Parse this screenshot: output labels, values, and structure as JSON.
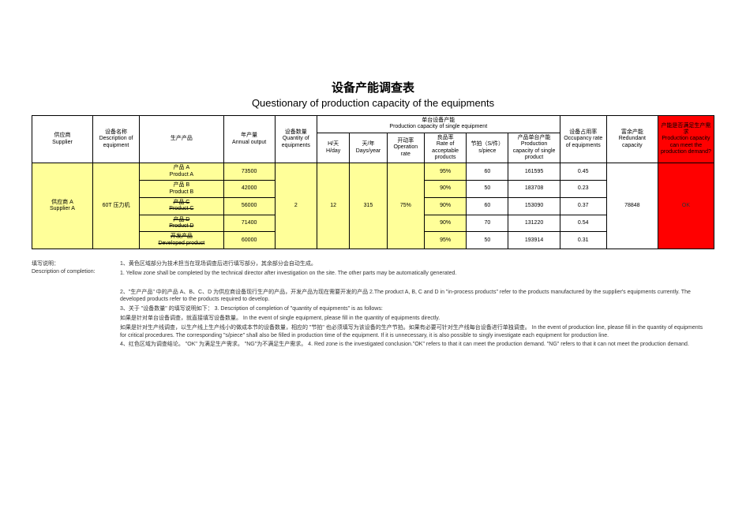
{
  "title": {
    "cn": "设备产能调查表",
    "en": "Questionary of production capacity of the equipments"
  },
  "headers": {
    "supplier": "供应商\nSupplier",
    "equipment_desc": "设备名称\nDescription of equipment",
    "product": "生产产品",
    "annual_output": "年产量\nAnnual output",
    "equip_qty": "设备数量\nQuantity of equipments",
    "single_cap_group": "单台设备产能\nProduction capacity of single equipment",
    "h_day": "H/天\nH/day",
    "days_year": "天/年\nDays/year",
    "operation_rate": "开动率\nOperation rate",
    "acceptable_rate": "良品率\nRate of acceptable products",
    "s_piece": "节拍（S/件）\ns/piece",
    "single_product_cap": "产品单台产能\nProduction capacity of single product",
    "occupancy_rate": "设备占用率\nOccupancy rate of equipments",
    "redundant": "富余产能\nRedundant capacity",
    "demand": "产能是否满足生产需求\nProduction capacity can meet the production demand?"
  },
  "supplier_row": {
    "supplier": "供应商 A\nSupplier A",
    "equipment": "60T 压力机",
    "equip_qty": "2",
    "h_day": "12",
    "days_year": "315",
    "operation_rate": "75%",
    "redundant": "78848",
    "demand": "OK",
    "products": [
      {
        "name": "产品 A\nProduct A",
        "annual": "73500",
        "acc": "95%",
        "spc": "60",
        "cap": "161595",
        "occ": "0.45",
        "strike": false
      },
      {
        "name": "产品 B\nProduct B",
        "annual": "42000",
        "acc": "90%",
        "spc": "50",
        "cap": "183708",
        "occ": "0.23",
        "strike": false
      },
      {
        "name": "产品 C\nProduct C",
        "annual": "56000",
        "acc": "90%",
        "spc": "60",
        "cap": "153090",
        "occ": "0.37",
        "strike": true
      },
      {
        "name": "产品 D\nProduct D",
        "annual": "71400",
        "acc": "90%",
        "spc": "70",
        "cap": "131220",
        "occ": "0.54",
        "strike": true
      },
      {
        "name": "开发产品\nDeveloped product",
        "annual": "60000",
        "acc": "95%",
        "spc": "50",
        "cap": "193914",
        "occ": "0.31",
        "strike": true
      }
    ]
  },
  "notes": {
    "label": "填写说明：\nDescription of completion:",
    "lines": [
      "1、黄色区域部分为技术担当在现场调查后进行填写部分，其余部分会自动生成。",
      "1. Yellow zone shall be completed by the technical director after investigation on the site. The other parts may be automatically generated.",
      "",
      "2、\"生产产品\" 中的产品 A、B、C、D 为供应商设备现行生产的产品，开发产品为现在需要开发的产品  2.The product A, B, C and D in \"in-process products\" refer to the products manufactured by the supplier's equipments currently. The developed products refer to the products required to develop.",
      "3、关于 \"设备数量\" 的填写说明如下：    3. Description of completion of \"quantity of equipments\" is as follows:",
      "如果是针对单台设备调查，就直接填写设备数量。                                In the event of single equipment, please fill in the quantity of equipments directly.",
      "如果是针对生产线调查，以生产线上生产线小的做成本节的设备数量，相应的     \"节拍\" 也必须填写为该设备的生产节拍。如果有必要可针对生产线每台设备进行单独调查。     In the event of production line, please fill in the quantity of equipments for critical procedures. The corresponding \"s/piece\" shall also be filled in production time of the equipment. If it is unnecessary, it is also possible to singly investigate each equipment for production line.",
      "4、红色区域为调查结论。     \"OK\" 为满足生产需求。  \"NG\"为不满足生产需求。   4. Red zone is the investigated conclusion.\"OK\" refers to that it can meet the production demand. \"NG\" refers to that it can not meet the production demand."
    ]
  },
  "colors": {
    "yellow": "#ffff99",
    "red": "#ff0000",
    "border": "#000000",
    "background": "#ffffff"
  },
  "fontsize": {
    "title_cn": 15,
    "title_en": 13,
    "table": 7,
    "notes": 7
  }
}
